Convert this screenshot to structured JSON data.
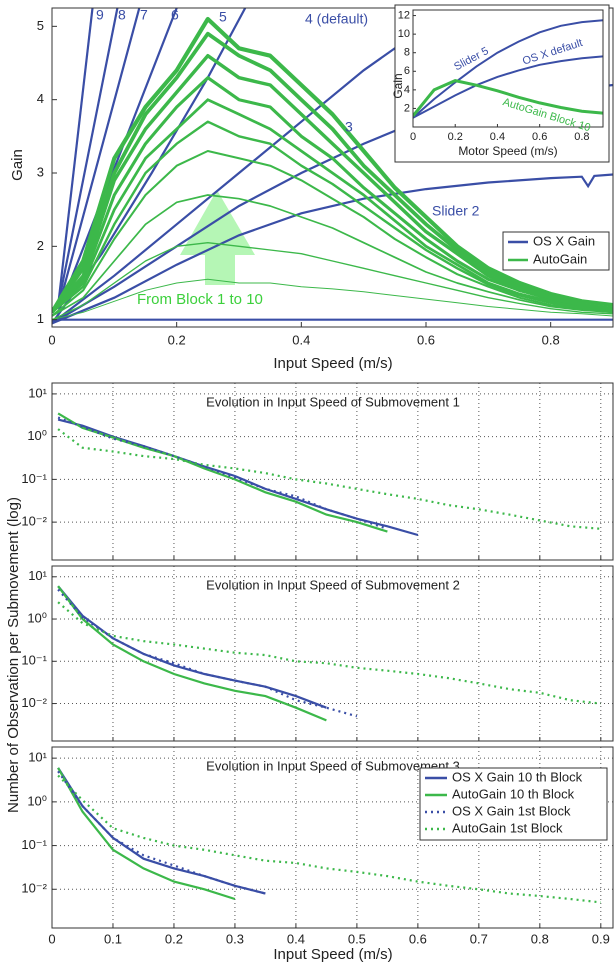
{
  "chart_data": [
    {
      "type": "line",
      "xlabel": "Input Speed (m/s)",
      "ylabel": "Gain",
      "xlim": [
        0,
        0.9
      ],
      "ylim": [
        0.9,
        5.25
      ],
      "xticks": [
        0,
        0.2,
        0.4,
        0.6,
        0.8
      ],
      "yticks": [
        1,
        2,
        3,
        4,
        5
      ],
      "legend": "center right",
      "annotation": "From Block 1 to 10",
      "x": [
        0,
        0.05,
        0.1,
        0.15,
        0.2,
        0.25,
        0.3,
        0.35,
        0.4,
        0.45,
        0.5,
        0.55,
        0.6,
        0.65,
        0.7,
        0.75,
        0.8,
        0.85,
        0.9
      ],
      "series": [
        {
          "name": "OS X Gain",
          "color": "#3a4ea6",
          "lines": [
            {
              "x": [
                0,
                0.9
              ],
              "values": [
                1,
                1
              ]
            },
            {
              "label": "Slider 2",
              "x": [
                0,
                0.1,
                0.2,
                0.3,
                0.4,
                0.5,
                0.6,
                0.7,
                0.8,
                0.85,
                0.86,
                0.87,
                0.9
              ],
              "values": [
                0.95,
                1.3,
                1.75,
                2.15,
                2.45,
                2.65,
                2.78,
                2.87,
                2.93,
                2.95,
                2.82,
                2.96,
                2.98
              ]
            },
            {
              "label": "3",
              "x": [
                0,
                0.1,
                0.2,
                0.3,
                0.4,
                0.5,
                0.6,
                0.7,
                0.8,
                0.9
              ],
              "values": [
                0.95,
                1.45,
                2.0,
                2.55,
                3.0,
                3.4,
                3.75,
                3.95,
                4.1,
                4.2
              ]
            },
            {
              "label": "4 (default)",
              "x": [
                0,
                0.1,
                0.2,
                0.3,
                0.4,
                0.5,
                0.6,
                0.65
              ],
              "values": [
                0.95,
                1.6,
                2.3,
                3.0,
                3.7,
                4.4,
                5.0,
                5.25
              ]
            },
            {
              "label": "5",
              "x": [
                0,
                0.08,
                0.16,
                0.25,
                0.31
              ],
              "values": [
                0.95,
                1.9,
                3.0,
                4.3,
                5.25
              ]
            },
            {
              "label": "6",
              "x": [
                0.01,
                0.2
              ],
              "values": [
                1.1,
                5.25
              ]
            },
            {
              "label": "7",
              "x": [
                0.01,
                0.14
              ],
              "values": [
                1.15,
                5.25
              ]
            },
            {
              "label": "8",
              "x": [
                0.01,
                0.105
              ],
              "values": [
                1.2,
                5.25
              ]
            },
            {
              "label": "9",
              "x": [
                0.01,
                0.065
              ],
              "values": [
                1.2,
                5.25
              ]
            }
          ]
        },
        {
          "name": "AutoGain",
          "color": "#3cb84a",
          "lines": [
            {
              "values": [
                1.0,
                1.1,
                1.25,
                1.4,
                1.5,
                1.55,
                1.5,
                1.5,
                1.45,
                1.42,
                1.38,
                1.33,
                1.28,
                1.23,
                1.18,
                1.14,
                1.1,
                1.08,
                1.05
              ]
            },
            {
              "values": [
                1.0,
                1.2,
                1.5,
                1.8,
                2.0,
                2.05,
                2.0,
                1.95,
                1.9,
                1.8,
                1.7,
                1.6,
                1.5,
                1.4,
                1.3,
                1.22,
                1.15,
                1.1,
                1.08
              ]
            },
            {
              "values": [
                1.05,
                1.3,
                1.8,
                2.3,
                2.6,
                2.7,
                2.65,
                2.55,
                2.4,
                2.25,
                2.05,
                1.85,
                1.65,
                1.5,
                1.38,
                1.27,
                1.18,
                1.13,
                1.1
              ]
            },
            {
              "values": [
                1.05,
                1.4,
                2.1,
                2.7,
                3.1,
                3.3,
                3.2,
                3.1,
                2.9,
                2.65,
                2.4,
                2.1,
                1.85,
                1.62,
                1.45,
                1.3,
                1.2,
                1.15,
                1.1
              ]
            },
            {
              "values": [
                1.1,
                1.45,
                2.3,
                3.0,
                3.4,
                3.7,
                3.5,
                3.4,
                3.1,
                2.85,
                2.55,
                2.25,
                1.95,
                1.7,
                1.48,
                1.33,
                1.23,
                1.16,
                1.12
              ]
            },
            {
              "values": [
                1.1,
                1.5,
                2.5,
                3.2,
                3.6,
                4.0,
                3.8,
                3.6,
                3.3,
                3.0,
                2.7,
                2.35,
                2.0,
                1.75,
                1.5,
                1.35,
                1.25,
                1.18,
                1.12
              ]
            },
            {
              "values": [
                1.1,
                1.55,
                2.7,
                3.4,
                3.9,
                4.3,
                4.0,
                3.9,
                3.5,
                3.2,
                2.8,
                2.45,
                2.1,
                1.8,
                1.55,
                1.4,
                1.28,
                1.2,
                1.15
              ]
            },
            {
              "values": [
                1.1,
                1.6,
                2.9,
                3.6,
                4.1,
                4.6,
                4.3,
                4.2,
                3.8,
                3.4,
                3.0,
                2.6,
                2.2,
                1.9,
                1.6,
                1.4,
                1.3,
                1.2,
                1.15
              ]
            },
            {
              "values": [
                1.1,
                1.7,
                3.0,
                3.8,
                4.3,
                4.9,
                4.6,
                4.4,
                4.0,
                3.6,
                3.1,
                2.7,
                2.3,
                1.95,
                1.65,
                1.45,
                1.3,
                1.2,
                1.15
              ]
            },
            {
              "values": [
                1.1,
                1.8,
                3.2,
                3.9,
                4.4,
                5.1,
                4.7,
                4.6,
                4.2,
                3.8,
                3.3,
                2.8,
                2.4,
                2.0,
                1.7,
                1.5,
                1.35,
                1.25,
                1.2
              ]
            }
          ]
        }
      ]
    },
    {
      "type": "line",
      "xlabel": "Motor Speed (m/s)",
      "ylabel": "Gain",
      "xlim": [
        0,
        0.9
      ],
      "ylim": [
        0,
        12.6
      ],
      "xticks": [
        0,
        0.2,
        0.4,
        0.6,
        0.8
      ],
      "yticks": [
        2,
        4,
        6,
        8,
        10,
        12
      ],
      "x": [
        0,
        0.1,
        0.2,
        0.3,
        0.4,
        0.5,
        0.6,
        0.7,
        0.8,
        0.9
      ],
      "series": [
        {
          "name": "Slider 5",
          "color": "#3a4ea6",
          "values": [
            1,
            3,
            4.8,
            6.5,
            8,
            9.2,
            10.2,
            10.9,
            11.3,
            11.5
          ]
        },
        {
          "name": "OS X default",
          "color": "#3a4ea6",
          "values": [
            1,
            2.2,
            3.4,
            4.5,
            5.4,
            6.1,
            6.7,
            7.1,
            7.4,
            7.6
          ]
        },
        {
          "name": "AutoGain Block 10",
          "color": "#3cb84a",
          "values": [
            1.2,
            4,
            5,
            4.5,
            3.9,
            3.2,
            2.6,
            2.1,
            1.7,
            1.5
          ]
        }
      ]
    },
    {
      "type": "line",
      "log_scale": true,
      "grid": true,
      "legend": "lower right",
      "xlabel": "Input Speed (m/s)",
      "ylabel": "Number of Observation per Submovement (log)",
      "xlim": [
        0,
        0.92
      ],
      "ylim": [
        0.0013,
        18
      ],
      "xticks": [
        0,
        0.1,
        0.2,
        0.3,
        0.4,
        0.5,
        0.6,
        0.7,
        0.8,
        0.9
      ],
      "yticks": [
        {
          "value": 10,
          "label": "10¹"
        },
        {
          "value": 1,
          "label": "10⁰"
        },
        {
          "value": 0.1,
          "label": "10⁻¹"
        },
        {
          "value": 0.01,
          "label": "10⁻²"
        }
      ],
      "x": [
        0.01,
        0.05,
        0.1,
        0.15,
        0.2,
        0.25,
        0.3,
        0.35,
        0.4,
        0.45,
        0.5,
        0.55,
        0.6,
        0.65,
        0.7,
        0.75,
        0.8,
        0.85,
        0.9
      ],
      "series": [
        {
          "name": "OS X Gain 10 th Block",
          "color": "#3a4ea6",
          "dash": "solid"
        },
        {
          "name": "AutoGain 10 th Block",
          "color": "#3cb84a",
          "dash": "solid"
        },
        {
          "name": "OS X Gain 1st Block",
          "color": "#3a4ea6",
          "dash": "dotted"
        },
        {
          "name": "AutoGain 1st Block",
          "color": "#3cb84a",
          "dash": "dotted"
        }
      ],
      "panels": [
        {
          "title": "Evolution in Input Speed of Submovement 1",
          "values": [
            [
              2.5,
              1.8,
              1.0,
              0.6,
              0.35,
              0.2,
              0.12,
              0.06,
              0.035,
              0.02,
              0.012,
              0.008,
              0.005,
              null,
              null,
              null,
              null,
              null,
              null
            ],
            [
              3.5,
              1.6,
              0.95,
              0.55,
              0.35,
              0.18,
              0.1,
              0.05,
              0.03,
              0.015,
              0.01,
              0.006,
              null,
              null,
              null,
              null,
              null,
              null,
              null
            ],
            [
              2.8,
              1.7,
              0.9,
              0.6,
              0.35,
              0.2,
              0.11,
              0.06,
              0.04,
              0.02,
              0.012,
              0.007,
              null,
              null,
              null,
              null,
              null,
              null,
              null
            ],
            [
              1.5,
              0.55,
              0.45,
              0.35,
              0.3,
              0.22,
              0.18,
              0.14,
              0.1,
              0.08,
              0.06,
              0.045,
              0.035,
              0.025,
              0.02,
              0.015,
              0.011,
              0.008,
              0.007
            ]
          ]
        },
        {
          "title": "Evolution in Input Speed of Submovement 2",
          "values": [
            [
              6,
              1.2,
              0.35,
              0.15,
              0.08,
              0.05,
              0.035,
              0.025,
              0.015,
              0.008,
              null,
              null,
              null,
              null,
              null,
              null,
              null,
              null,
              null
            ],
            [
              6,
              1.0,
              0.25,
              0.1,
              0.05,
              0.03,
              0.02,
              0.015,
              0.008,
              0.004,
              null,
              null,
              null,
              null,
              null,
              null,
              null,
              null,
              null
            ],
            [
              5,
              1.1,
              0.35,
              0.15,
              0.09,
              0.05,
              0.035,
              0.025,
              0.012,
              0.008,
              0.005,
              null,
              null,
              null,
              null,
              null,
              null,
              null,
              null
            ],
            [
              2.5,
              0.8,
              0.4,
              0.3,
              0.25,
              0.2,
              0.16,
              0.14,
              0.1,
              0.09,
              0.07,
              0.06,
              0.05,
              0.04,
              0.03,
              0.022,
              0.018,
              0.012,
              0.01
            ]
          ]
        },
        {
          "title": "Evolution in Input Speed of Submovement 3",
          "values": [
            [
              6,
              0.8,
              0.15,
              0.05,
              0.03,
              0.02,
              0.012,
              0.008,
              null,
              null,
              null,
              null,
              null,
              null,
              null,
              null,
              null,
              null,
              null
            ],
            [
              6,
              0.6,
              0.08,
              0.03,
              0.015,
              0.01,
              0.006,
              null,
              null,
              null,
              null,
              null,
              null,
              null,
              null,
              null,
              null,
              null,
              null
            ],
            [
              5,
              0.8,
              0.15,
              0.06,
              0.035,
              0.02,
              0.012,
              0.008,
              null,
              null,
              null,
              null,
              null,
              null,
              null,
              null,
              null,
              null,
              null
            ],
            [
              4,
              1.1,
              0.25,
              0.15,
              0.1,
              0.08,
              0.06,
              0.045,
              0.04,
              0.03,
              0.025,
              0.02,
              0.015,
              0.012,
              0.01,
              0.008,
              0.007,
              0.006,
              0.005
            ]
          ]
        }
      ]
    }
  ]
}
